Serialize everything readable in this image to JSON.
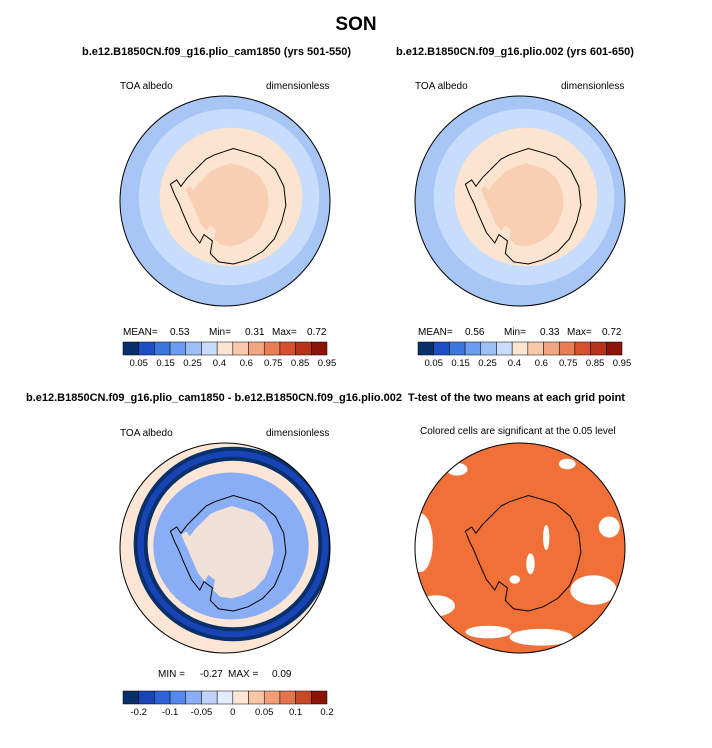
{
  "title": "SON",
  "chart_data": [
    {
      "type": "heatmap",
      "projection": "south-polar-stereographic",
      "title": "b.e12.B1850CN.f09_g16.plio_cam1850 (yrs 501-550)",
      "left_label": "TOA albedo",
      "right_label": "dimensionless",
      "stats": {
        "mean_label": "MEAN=",
        "mean": "0.53",
        "min_label": "Min=",
        "min": "0.31",
        "max_label": "Max=",
        "max": "0.72"
      },
      "colorbar_ticks": [
        "0.05",
        "0.15",
        "0.25",
        "0.4",
        "0.6",
        "0.75",
        "0.85",
        "0.95"
      ],
      "field_levels": [
        0.4,
        0.5,
        0.6,
        0.65
      ]
    },
    {
      "type": "heatmap",
      "projection": "south-polar-stereographic",
      "title": "b.e12.B1850CN.f09_g16.plio.002 (yrs 601-650)",
      "left_label": "TOA albedo",
      "right_label": "dimensionless",
      "stats": {
        "mean_label": "MEAN=",
        "mean": "0.56",
        "min_label": "Min=",
        "min": "0.33",
        "max_label": "Max=",
        "max": "0.72"
      },
      "colorbar_ticks": [
        "0.05",
        "0.15",
        "0.25",
        "0.4",
        "0.6",
        "0.75",
        "0.85",
        "0.95"
      ],
      "field_levels": [
        0.4,
        0.5,
        0.6,
        0.65
      ]
    },
    {
      "type": "heatmap",
      "projection": "south-polar-stereographic",
      "title": "b.e12.B1850CN.f09_g16.plio_cam1850 - b.e12.B1850CN.f09_g16.plio.002",
      "left_label": "TOA albedo",
      "right_label": "dimensionless",
      "stats": {
        "min_label": "MIN =",
        "min": "-0.27",
        "max_label": "MAX =",
        "max": "0.09"
      },
      "colorbar_ticks": [
        "-0.2",
        "-0.1",
        "-0.05",
        "0",
        "0.05",
        "0.1",
        "0.2"
      ],
      "field_levels": [
        0.02,
        -0.02,
        -0.15,
        -0.25
      ]
    },
    {
      "type": "heatmap",
      "projection": "south-polar-stereographic",
      "title": "T-test of the two means at each grid point",
      "subtitle": "Colored cells are significant at the 0.05 level",
      "field_levels": [
        1
      ]
    }
  ],
  "colors": {
    "seq": [
      "#08306b",
      "#1c4fc4",
      "#3a78e0",
      "#6a9cf0",
      "#9cc0f6",
      "#c8dcfb",
      "#fbe4d0",
      "#f9c9ac",
      "#f3a682",
      "#ea7c56",
      "#d8512f",
      "#b8321a",
      "#8b1409"
    ],
    "div": [
      "#08306b",
      "#1844b8",
      "#2e63d8",
      "#5588ec",
      "#89aef5",
      "#bfd3fa",
      "#e3edfd",
      "#fde6d5",
      "#f8c6a6",
      "#f09f77",
      "#e3744c",
      "#c9482a",
      "#8b1409"
    ],
    "sig": "#f07038",
    "ocean_base": "#a8c6f5",
    "land_outline": "#000000"
  }
}
